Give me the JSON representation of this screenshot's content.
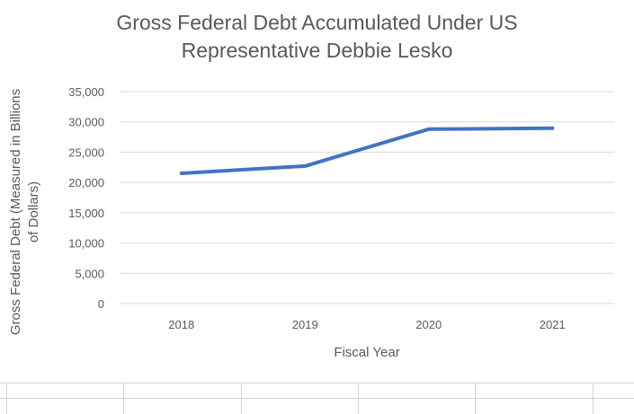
{
  "chart_data": {
    "type": "line",
    "title_lines": [
      "Gross Federal Debt Accumulated Under US",
      "Representative Debbie Lesko"
    ],
    "xlabel": "Fiscal Year",
    "ylabel_lines": [
      "Gross Federal Debt (Measured in Billions",
      "of Dollars)"
    ],
    "categories": [
      "2018",
      "2019",
      "2020",
      "2021"
    ],
    "series": [
      {
        "values": [
          21500,
          22700,
          28800,
          28950
        ],
        "color": "#4472c4"
      }
    ],
    "ylim": [
      0,
      35000
    ],
    "yticks": [
      0,
      5000,
      10000,
      15000,
      20000,
      25000,
      30000,
      35000
    ],
    "ytick_labels": [
      "0",
      "5,000",
      "10,000",
      "15,000",
      "20,000",
      "25,000",
      "30,000",
      "35,000"
    ],
    "grid": true,
    "legend": "none"
  }
}
